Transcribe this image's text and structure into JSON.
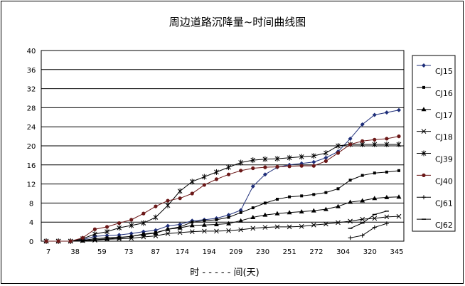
{
  "chart_data": {
    "type": "line",
    "title": "周边道路沉降量~时间曲线图",
    "xlabel": "时 - - - - - 间(天)",
    "ylabel": "",
    "ylim": [
      0,
      40
    ],
    "yticks": [
      "0",
      "4",
      "8",
      "12",
      "16",
      "20",
      "24",
      "28",
      "32",
      "36",
      "40"
    ],
    "x_tick_labels": [
      "7",
      "38",
      "59",
      "73",
      "87",
      "174",
      "194",
      "209",
      "230",
      "251",
      "272",
      "304",
      "320",
      "345"
    ],
    "num_points": 30,
    "grid": "horizontal",
    "legend_position": "right",
    "series": [
      {
        "name": "CJ15",
        "color": "#1f2f7a",
        "marker": "diamond",
        "start": 0,
        "values": [
          0,
          0,
          0,
          0.3,
          1,
          1.2,
          1.3,
          1.6,
          2,
          2.3,
          3.2,
          3.5,
          4.3,
          4.5,
          4.8,
          5.5,
          6.5,
          11.5,
          14,
          15.5,
          16,
          16.3,
          16.6,
          17.5,
          18.8,
          21.5,
          24.5,
          26.5,
          27,
          27.5
        ]
      },
      {
        "name": "CJ16",
        "color": "#000000",
        "marker": "square",
        "start": 0,
        "values": [
          0,
          0,
          0,
          0.2,
          0.5,
          0.7,
          0.8,
          1,
          1.5,
          1.8,
          2.5,
          3,
          4,
          4.3,
          4.5,
          5,
          6,
          7,
          8,
          8.8,
          9.3,
          9.5,
          9.8,
          10.2,
          11,
          12.8,
          13.8,
          14.3,
          14.5,
          14.8
        ]
      },
      {
        "name": "CJ17",
        "color": "#000000",
        "marker": "triangle",
        "start": 0,
        "values": [
          0,
          0,
          0,
          0.1,
          0.3,
          0.5,
          0.7,
          1,
          1.4,
          1.7,
          2.5,
          2.8,
          3.3,
          3.4,
          3.5,
          3.7,
          4.3,
          5,
          5.5,
          5.8,
          6,
          6.2,
          6.4,
          6.7,
          7.3,
          8.2,
          8.5,
          9,
          9.2,
          9.3
        ]
      },
      {
        "name": "CJ18",
        "color": "#000000",
        "marker": "x",
        "start": 0,
        "values": [
          0,
          0,
          0,
          0.1,
          0.2,
          0.4,
          0.5,
          0.6,
          0.9,
          1.1,
          1.6,
          1.8,
          2,
          2.1,
          2.1,
          2.2,
          2.4,
          2.7,
          2.9,
          3,
          3,
          3.1,
          3.4,
          3.6,
          3.9,
          4.2,
          4.6,
          4.8,
          5.1,
          5.2
        ]
      },
      {
        "name": "CJ39",
        "color": "#000000",
        "marker": "star",
        "start": 0,
        "values": [
          0,
          0,
          0,
          0.5,
          1.5,
          2,
          2.8,
          3.3,
          3.8,
          5,
          7.5,
          10.5,
          12.5,
          13.5,
          14.5,
          15.5,
          16.5,
          17,
          17.2,
          17.3,
          17.5,
          17.7,
          17.9,
          18.5,
          20,
          20.3,
          20.3,
          20.3,
          20.3,
          20.3
        ]
      },
      {
        "name": "CJ40",
        "color": "#6b1818",
        "marker": "circle",
        "start": 0,
        "values": [
          0,
          0,
          0,
          0.7,
          2.5,
          3,
          3.8,
          4.5,
          5.8,
          7.3,
          8.5,
          9,
          10,
          11.8,
          13,
          14,
          14.8,
          15.3,
          15.5,
          15.6,
          15.7,
          15.8,
          15.8,
          16.8,
          18.5,
          20.3,
          21,
          21.3,
          21.5,
          22
        ]
      },
      {
        "name": "CJ61",
        "color": "#000000",
        "marker": "plus",
        "start": 25,
        "values": [
          0.7,
          1.2,
          2.9,
          3.7
        ]
      },
      {
        "name": "CJ62",
        "color": "#000000",
        "marker": "dash",
        "start": 25,
        "values": [
          2.7,
          3.8,
          5.6,
          6.3
        ]
      }
    ]
  }
}
